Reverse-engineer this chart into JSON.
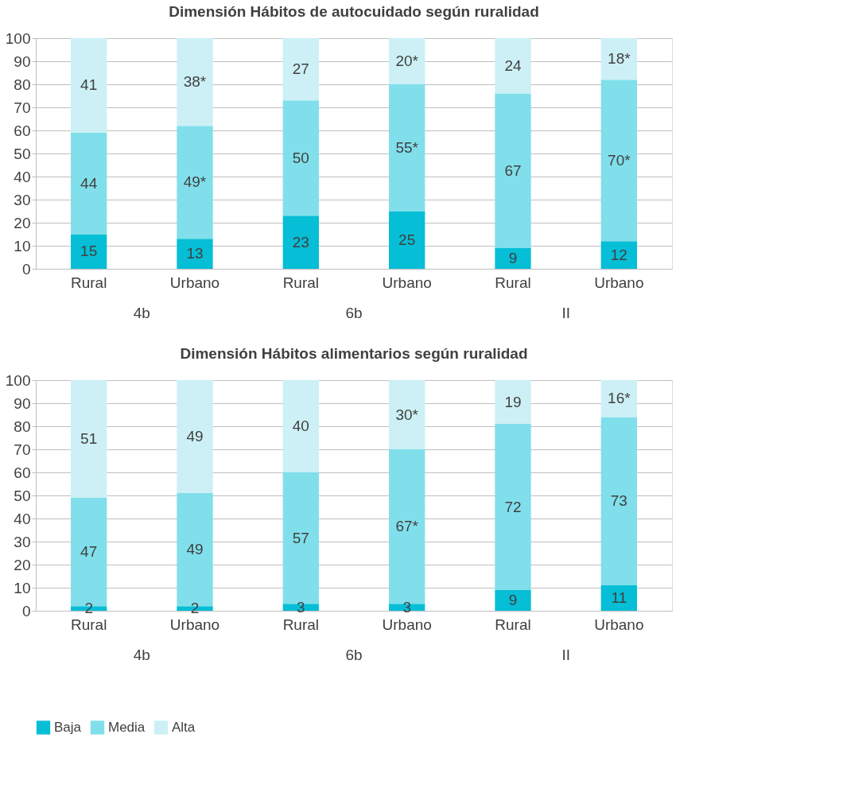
{
  "chart_data": [
    {
      "type": "bar",
      "title": "Dimensión Hábitos de autocuidado según ruralidad",
      "stacked": true,
      "categories": [
        "Rural",
        "Urbano",
        "Rural",
        "Urbano",
        "Rural",
        "Urbano"
      ],
      "annotations": [
        "4b",
        "6b",
        "II"
      ],
      "ylim": [
        0,
        100
      ],
      "yticks": [
        0,
        10,
        20,
        30,
        40,
        50,
        60,
        70,
        80,
        90,
        100
      ],
      "grid": "y",
      "legend": "bottom",
      "series": [
        {
          "name": "Baja",
          "color": "#06bed6",
          "values": [
            15,
            13,
            23,
            25,
            9,
            12
          ],
          "value_labels": [
            "15",
            "13",
            "23",
            "25",
            "9",
            "12"
          ]
        },
        {
          "name": "Media",
          "color": "#80dfeb",
          "values": [
            44,
            49,
            50,
            55,
            67,
            70
          ],
          "value_labels": [
            "44",
            "49*",
            "50",
            "55*",
            "67",
            "70*"
          ]
        },
        {
          "name": "Alta",
          "color": "#ccf0f5",
          "values": [
            41,
            38,
            27,
            20,
            24,
            18
          ],
          "value_labels": [
            "41",
            "38*",
            "27",
            "20*",
            "24",
            "18*"
          ]
        }
      ]
    },
    {
      "type": "bar",
      "title": "Dimensión Hábitos alimentarios según ruralidad",
      "stacked": true,
      "categories": [
        "Rural",
        "Urbano",
        "Rural",
        "Urbano",
        "Rural",
        "Urbano"
      ],
      "annotations": [
        "4b",
        "6b",
        "II"
      ],
      "ylim": [
        0,
        100
      ],
      "yticks": [
        0,
        10,
        20,
        30,
        40,
        50,
        60,
        70,
        80,
        90,
        100
      ],
      "grid": "y",
      "legend": "bottom",
      "series": [
        {
          "name": "Baja",
          "color": "#06bed6",
          "values": [
            2,
            2,
            3,
            3,
            9,
            11
          ],
          "value_labels": [
            "2",
            "2",
            "3",
            "3",
            "9",
            "11"
          ]
        },
        {
          "name": "Media",
          "color": "#80dfeb",
          "values": [
            47,
            49,
            57,
            67,
            72,
            73
          ],
          "value_labels": [
            "47",
            "49",
            "57",
            "67*",
            "72",
            "73"
          ]
        },
        {
          "name": "Alta",
          "color": "#ccf0f5",
          "values": [
            51,
            49,
            40,
            30,
            19,
            16
          ],
          "value_labels": [
            "51",
            "49",
            "40",
            "30*",
            "19",
            "16*"
          ]
        }
      ]
    }
  ]
}
